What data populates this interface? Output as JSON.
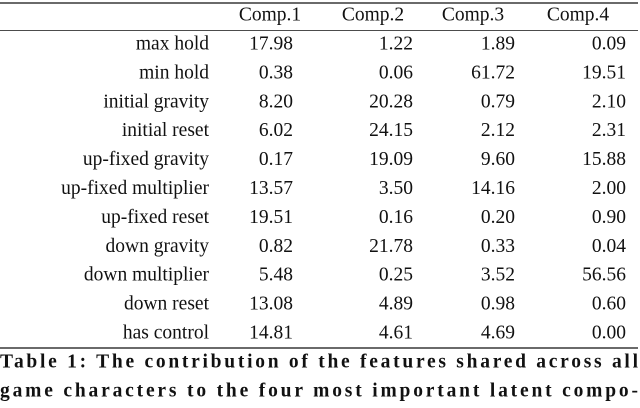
{
  "table": {
    "header": [
      "Comp.1",
      "Comp.2",
      "Comp.3",
      "Comp.4"
    ],
    "rows": [
      [
        "max hold",
        "17.98",
        "1.22",
        "1.89",
        "0.09"
      ],
      [
        "min hold",
        "0.38",
        "0.06",
        "61.72",
        "19.51"
      ],
      [
        "initial gravity",
        "8.20",
        "20.28",
        "0.79",
        "2.10"
      ],
      [
        "initial reset",
        "6.02",
        "24.15",
        "2.12",
        "2.31"
      ],
      [
        "up-fixed gravity",
        "0.17",
        "19.09",
        "9.60",
        "15.88"
      ],
      [
        "up-fixed multiplier",
        "13.57",
        "3.50",
        "14.16",
        "2.00"
      ],
      [
        "up-fixed reset",
        "19.51",
        "0.16",
        "0.20",
        "0.90"
      ],
      [
        "down gravity",
        "0.82",
        "21.78",
        "0.33",
        "0.04"
      ],
      [
        "down multiplier",
        "5.48",
        "0.25",
        "3.52",
        "56.56"
      ],
      [
        "down reset",
        "13.08",
        "4.89",
        "0.98",
        "0.60"
      ],
      [
        "has control",
        "14.81",
        "4.61",
        "4.69",
        "0.00"
      ]
    ]
  },
  "caption": {
    "lines": [
      "Table 1: The contribution of the features shared across all",
      "game characters to the four most important latent compo-"
    ]
  }
}
